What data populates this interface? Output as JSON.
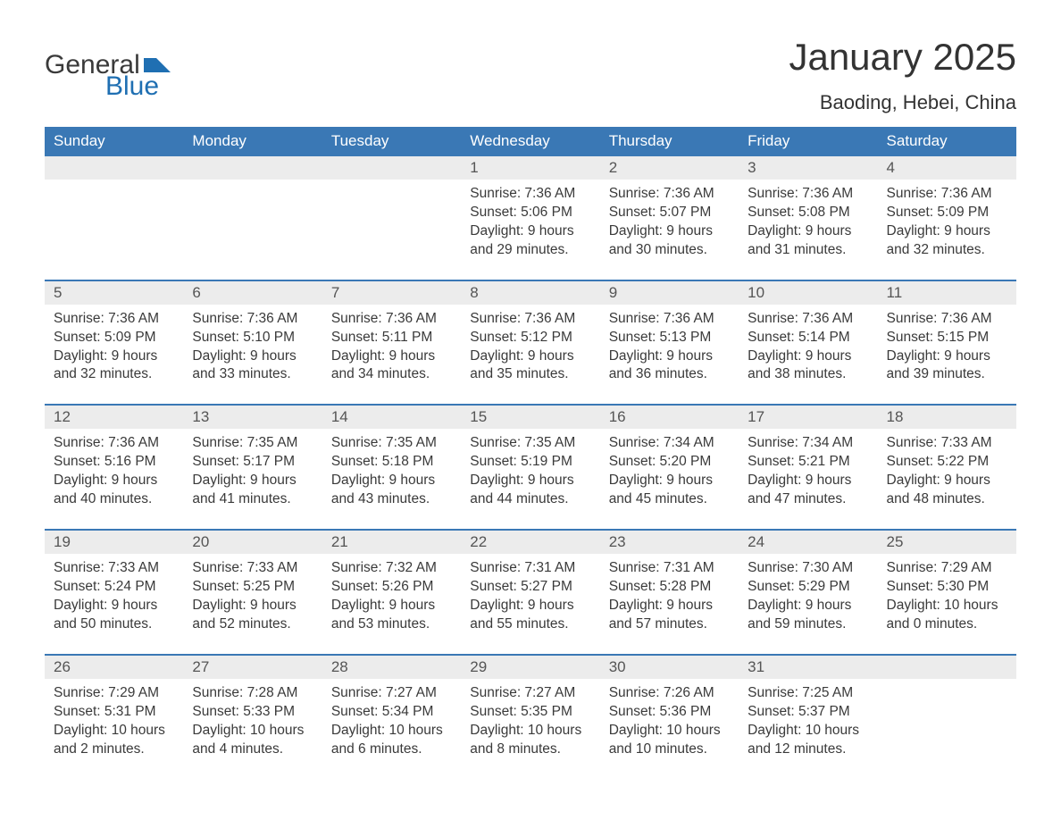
{
  "logo": {
    "word1": "General",
    "word2": "Blue",
    "flag_color": "#1f6fb2"
  },
  "title": "January 2025",
  "location": "Baoding, Hebei, China",
  "colors": {
    "header_bg": "#3a78b5",
    "band_bg": "#ececec",
    "rule": "#3a78b5",
    "text": "#3a3a3a"
  },
  "days_of_week": [
    "Sunday",
    "Monday",
    "Tuesday",
    "Wednesday",
    "Thursday",
    "Friday",
    "Saturday"
  ],
  "weeks": [
    {
      "cells": [
        {
          "n": "",
          "sunrise": "",
          "sunset": "",
          "daylight": ""
        },
        {
          "n": "",
          "sunrise": "",
          "sunset": "",
          "daylight": ""
        },
        {
          "n": "",
          "sunrise": "",
          "sunset": "",
          "daylight": ""
        },
        {
          "n": "1",
          "sunrise": "Sunrise: 7:36 AM",
          "sunset": "Sunset: 5:06 PM",
          "daylight": "Daylight: 9 hours and 29 minutes."
        },
        {
          "n": "2",
          "sunrise": "Sunrise: 7:36 AM",
          "sunset": "Sunset: 5:07 PM",
          "daylight": "Daylight: 9 hours and 30 minutes."
        },
        {
          "n": "3",
          "sunrise": "Sunrise: 7:36 AM",
          "sunset": "Sunset: 5:08 PM",
          "daylight": "Daylight: 9 hours and 31 minutes."
        },
        {
          "n": "4",
          "sunrise": "Sunrise: 7:36 AM",
          "sunset": "Sunset: 5:09 PM",
          "daylight": "Daylight: 9 hours and 32 minutes."
        }
      ]
    },
    {
      "cells": [
        {
          "n": "5",
          "sunrise": "Sunrise: 7:36 AM",
          "sunset": "Sunset: 5:09 PM",
          "daylight": "Daylight: 9 hours and 32 minutes."
        },
        {
          "n": "6",
          "sunrise": "Sunrise: 7:36 AM",
          "sunset": "Sunset: 5:10 PM",
          "daylight": "Daylight: 9 hours and 33 minutes."
        },
        {
          "n": "7",
          "sunrise": "Sunrise: 7:36 AM",
          "sunset": "Sunset: 5:11 PM",
          "daylight": "Daylight: 9 hours and 34 minutes."
        },
        {
          "n": "8",
          "sunrise": "Sunrise: 7:36 AM",
          "sunset": "Sunset: 5:12 PM",
          "daylight": "Daylight: 9 hours and 35 minutes."
        },
        {
          "n": "9",
          "sunrise": "Sunrise: 7:36 AM",
          "sunset": "Sunset: 5:13 PM",
          "daylight": "Daylight: 9 hours and 36 minutes."
        },
        {
          "n": "10",
          "sunrise": "Sunrise: 7:36 AM",
          "sunset": "Sunset: 5:14 PM",
          "daylight": "Daylight: 9 hours and 38 minutes."
        },
        {
          "n": "11",
          "sunrise": "Sunrise: 7:36 AM",
          "sunset": "Sunset: 5:15 PM",
          "daylight": "Daylight: 9 hours and 39 minutes."
        }
      ]
    },
    {
      "cells": [
        {
          "n": "12",
          "sunrise": "Sunrise: 7:36 AM",
          "sunset": "Sunset: 5:16 PM",
          "daylight": "Daylight: 9 hours and 40 minutes."
        },
        {
          "n": "13",
          "sunrise": "Sunrise: 7:35 AM",
          "sunset": "Sunset: 5:17 PM",
          "daylight": "Daylight: 9 hours and 41 minutes."
        },
        {
          "n": "14",
          "sunrise": "Sunrise: 7:35 AM",
          "sunset": "Sunset: 5:18 PM",
          "daylight": "Daylight: 9 hours and 43 minutes."
        },
        {
          "n": "15",
          "sunrise": "Sunrise: 7:35 AM",
          "sunset": "Sunset: 5:19 PM",
          "daylight": "Daylight: 9 hours and 44 minutes."
        },
        {
          "n": "16",
          "sunrise": "Sunrise: 7:34 AM",
          "sunset": "Sunset: 5:20 PM",
          "daylight": "Daylight: 9 hours and 45 minutes."
        },
        {
          "n": "17",
          "sunrise": "Sunrise: 7:34 AM",
          "sunset": "Sunset: 5:21 PM",
          "daylight": "Daylight: 9 hours and 47 minutes."
        },
        {
          "n": "18",
          "sunrise": "Sunrise: 7:33 AM",
          "sunset": "Sunset: 5:22 PM",
          "daylight": "Daylight: 9 hours and 48 minutes."
        }
      ]
    },
    {
      "cells": [
        {
          "n": "19",
          "sunrise": "Sunrise: 7:33 AM",
          "sunset": "Sunset: 5:24 PM",
          "daylight": "Daylight: 9 hours and 50 minutes."
        },
        {
          "n": "20",
          "sunrise": "Sunrise: 7:33 AM",
          "sunset": "Sunset: 5:25 PM",
          "daylight": "Daylight: 9 hours and 52 minutes."
        },
        {
          "n": "21",
          "sunrise": "Sunrise: 7:32 AM",
          "sunset": "Sunset: 5:26 PM",
          "daylight": "Daylight: 9 hours and 53 minutes."
        },
        {
          "n": "22",
          "sunrise": "Sunrise: 7:31 AM",
          "sunset": "Sunset: 5:27 PM",
          "daylight": "Daylight: 9 hours and 55 minutes."
        },
        {
          "n": "23",
          "sunrise": "Sunrise: 7:31 AM",
          "sunset": "Sunset: 5:28 PM",
          "daylight": "Daylight: 9 hours and 57 minutes."
        },
        {
          "n": "24",
          "sunrise": "Sunrise: 7:30 AM",
          "sunset": "Sunset: 5:29 PM",
          "daylight": "Daylight: 9 hours and 59 minutes."
        },
        {
          "n": "25",
          "sunrise": "Sunrise: 7:29 AM",
          "sunset": "Sunset: 5:30 PM",
          "daylight": "Daylight: 10 hours and 0 minutes."
        }
      ]
    },
    {
      "cells": [
        {
          "n": "26",
          "sunrise": "Sunrise: 7:29 AM",
          "sunset": "Sunset: 5:31 PM",
          "daylight": "Daylight: 10 hours and 2 minutes."
        },
        {
          "n": "27",
          "sunrise": "Sunrise: 7:28 AM",
          "sunset": "Sunset: 5:33 PM",
          "daylight": "Daylight: 10 hours and 4 minutes."
        },
        {
          "n": "28",
          "sunrise": "Sunrise: 7:27 AM",
          "sunset": "Sunset: 5:34 PM",
          "daylight": "Daylight: 10 hours and 6 minutes."
        },
        {
          "n": "29",
          "sunrise": "Sunrise: 7:27 AM",
          "sunset": "Sunset: 5:35 PM",
          "daylight": "Daylight: 10 hours and 8 minutes."
        },
        {
          "n": "30",
          "sunrise": "Sunrise: 7:26 AM",
          "sunset": "Sunset: 5:36 PM",
          "daylight": "Daylight: 10 hours and 10 minutes."
        },
        {
          "n": "31",
          "sunrise": "Sunrise: 7:25 AM",
          "sunset": "Sunset: 5:37 PM",
          "daylight": "Daylight: 10 hours and 12 minutes."
        },
        {
          "n": "",
          "sunrise": "",
          "sunset": "",
          "daylight": ""
        }
      ]
    }
  ]
}
